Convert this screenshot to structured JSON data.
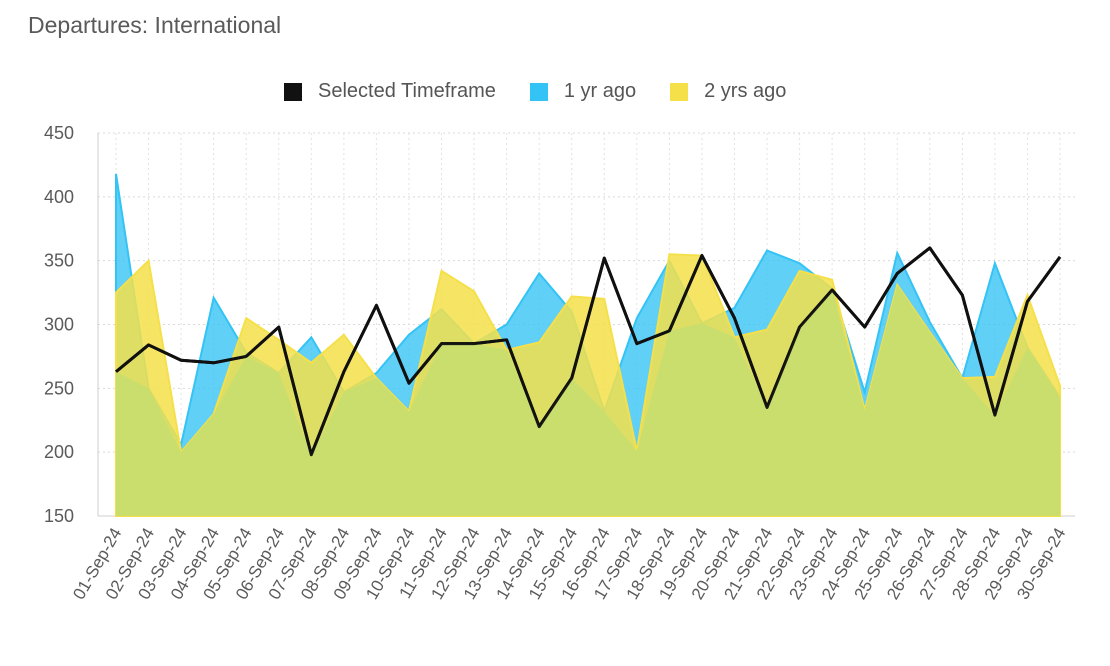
{
  "chart_data": {
    "type": "area",
    "title": "Departures: International",
    "xlabel": "",
    "ylabel": "",
    "ylim": [
      150,
      450
    ],
    "yticks": [
      150,
      200,
      250,
      300,
      350,
      400,
      450
    ],
    "grid": true,
    "legend_position": "top-center",
    "categories": [
      "01-Sep-24",
      "02-Sep-24",
      "03-Sep-24",
      "04-Sep-24",
      "05-Sep-24",
      "06-Sep-24",
      "07-Sep-24",
      "08-Sep-24",
      "09-Sep-24",
      "10-Sep-24",
      "11-Sep-24",
      "12-Sep-24",
      "13-Sep-24",
      "14-Sep-24",
      "15-Sep-24",
      "16-Sep-24",
      "17-Sep-24",
      "18-Sep-24",
      "19-Sep-24",
      "20-Sep-24",
      "21-Sep-24",
      "22-Sep-24",
      "23-Sep-24",
      "24-Sep-24",
      "25-Sep-24",
      "26-Sep-24",
      "27-Sep-24",
      "28-Sep-24",
      "29-Sep-24",
      "30-Sep-24"
    ],
    "series": [
      {
        "name": "Selected Timeframe",
        "kind": "line",
        "color": "#111111",
        "values": [
          263,
          284,
          272,
          270,
          275,
          298,
          198,
          263,
          315,
          254,
          285,
          285,
          288,
          220,
          258,
          352,
          285,
          295,
          354,
          305,
          235,
          298,
          327,
          298,
          340,
          360,
          323,
          229,
          318,
          353
        ]
      },
      {
        "name": "1 yr ago",
        "kind": "area",
        "color": "#33C3F5",
        "values": [
          418,
          250,
          206,
          321,
          278,
          262,
          290,
          247,
          262,
          292,
          312,
          285,
          300,
          340,
          310,
          232,
          305,
          350,
          301,
          313,
          358,
          348,
          328,
          247,
          356,
          302,
          258,
          348,
          282,
          243
        ]
      },
      {
        "name": "2 yrs ago",
        "kind": "area",
        "color": "#F5E04A",
        "values": [
          325,
          350,
          200,
          230,
          305,
          288,
          270,
          292,
          258,
          232,
          342,
          326,
          280,
          286,
          322,
          320,
          201,
          355,
          354,
          290,
          296,
          342,
          335,
          233,
          331,
          294,
          258,
          259,
          323,
          252
        ]
      }
    ]
  }
}
